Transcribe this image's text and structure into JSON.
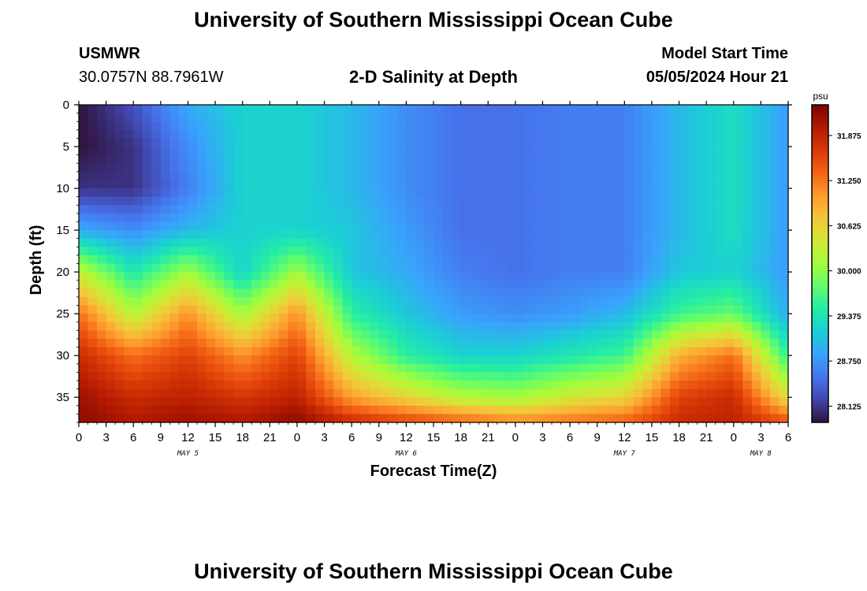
{
  "page": {
    "title_top": "University of Southern Mississippi Ocean Cube",
    "title_bottom": "University of Southern Mississippi Ocean Cube",
    "station": "USMWR",
    "coords": "30.0757N  88.7961W",
    "subtitle": "2-D Salinity at Depth",
    "model_start_label": "Model Start Time",
    "model_start_value": "05/05/2024 Hour 21"
  },
  "chart_data": {
    "type": "heatmap",
    "title": "2-D Salinity at Depth",
    "xlabel": "Forecast Time(Z)",
    "ylabel": "Depth (ft)",
    "x_ticks": [
      "0",
      "3",
      "6",
      "9",
      "12",
      "15",
      "18",
      "21",
      "0",
      "3",
      "6",
      "9",
      "12",
      "15",
      "18",
      "21",
      "0",
      "3",
      "6",
      "9",
      "12",
      "15",
      "18",
      "21",
      "0",
      "3",
      "6"
    ],
    "x_range_hours": [
      0,
      78
    ],
    "date_labels": [
      {
        "text": "MAY 5",
        "hour": 12
      },
      {
        "text": "MAY 6",
        "hour": 36
      },
      {
        "text": "MAY 7",
        "hour": 60
      },
      {
        "text": "MAY 8",
        "hour": 75
      }
    ],
    "y_ticks": [
      0,
      5,
      10,
      15,
      20,
      25,
      30,
      35
    ],
    "ylim": [
      0,
      38
    ],
    "y_inverted": true,
    "colorbar": {
      "unit": "psu",
      "ticks": [
        "31.875",
        "31.250",
        "30.625",
        "30.000",
        "29.375",
        "28.750",
        "28.125"
      ],
      "range": [
        27.9,
        32.3
      ],
      "colormap": [
        "#30123b",
        "#4145ab",
        "#4675ed",
        "#39a2fc",
        "#1bcfd4",
        "#24eca6",
        "#61fc6c",
        "#a4fc3b",
        "#d1e834",
        "#f3c63a",
        "#fe9b2d",
        "#f36315",
        "#d93806",
        "#b11901",
        "#7a0403"
      ]
    },
    "grid_hours": [
      0,
      6,
      12,
      18,
      24,
      30,
      36,
      42,
      48,
      54,
      60,
      66,
      72,
      78
    ],
    "grid_depths": [
      0,
      5,
      10,
      15,
      20,
      25,
      30,
      35,
      38
    ],
    "salinity_psu": [
      [
        27.9,
        28.3,
        28.9,
        29.2,
        29.2,
        29.0,
        28.7,
        28.5,
        28.5,
        28.6,
        28.6,
        29.0,
        29.3,
        28.8
      ],
      [
        27.9,
        28.1,
        28.7,
        29.2,
        29.2,
        29.0,
        28.7,
        28.5,
        28.5,
        28.6,
        28.6,
        29.0,
        29.3,
        28.8
      ],
      [
        28.1,
        28.1,
        28.6,
        29.2,
        29.2,
        29.0,
        28.7,
        28.5,
        28.5,
        28.6,
        28.6,
        29.0,
        29.3,
        28.8
      ],
      [
        28.9,
        28.7,
        29.0,
        29.2,
        29.2,
        29.1,
        28.8,
        28.5,
        28.5,
        28.6,
        28.6,
        29.0,
        29.3,
        28.8
      ],
      [
        30.3,
        29.4,
        30.1,
        29.2,
        30.1,
        29.1,
        28.9,
        28.6,
        28.5,
        28.6,
        28.6,
        29.1,
        29.2,
        28.8
      ],
      [
        31.3,
        30.2,
        31.1,
        30.1,
        31.1,
        29.5,
        29.1,
        28.8,
        28.7,
        28.8,
        29.0,
        29.6,
        29.8,
        28.9
      ],
      [
        31.8,
        31.3,
        31.6,
        31.1,
        31.6,
        30.2,
        29.5,
        29.2,
        29.2,
        29.4,
        29.6,
        30.9,
        31.3,
        29.5
      ],
      [
        32.1,
        31.8,
        31.9,
        31.7,
        31.9,
        31.0,
        30.6,
        30.2,
        30.1,
        30.4,
        30.6,
        31.6,
        31.8,
        30.5
      ],
      [
        32.2,
        32.0,
        32.1,
        32.0,
        32.2,
        31.8,
        31.6,
        31.4,
        31.2,
        31.3,
        31.4,
        31.8,
        31.9,
        31.5
      ]
    ]
  }
}
